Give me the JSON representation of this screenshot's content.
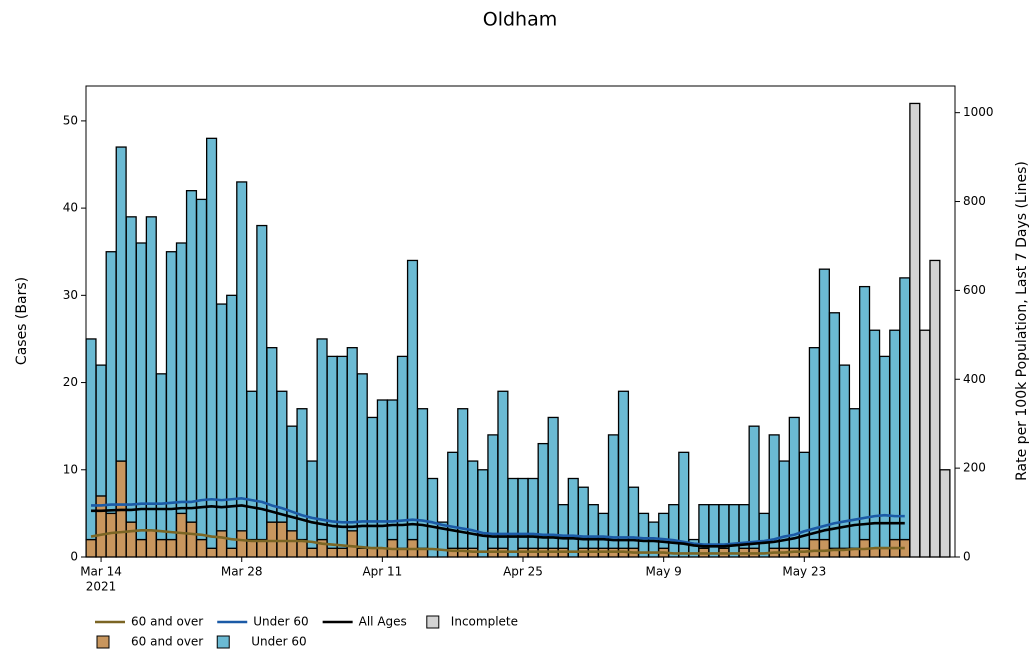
{
  "chart_data": {
    "type": "bar",
    "title": "Oldham",
    "y_label": "Cases (Bars)",
    "y2_label": "Rate per 100k Population, Last 7 Days (Lines)",
    "x": [
      "2021-03-13",
      "2021-03-14",
      "2021-03-15",
      "2021-03-16",
      "2021-03-17",
      "2021-03-18",
      "2021-03-19",
      "2021-03-20",
      "2021-03-21",
      "2021-03-22",
      "2021-03-23",
      "2021-03-24",
      "2021-03-25",
      "2021-03-26",
      "2021-03-27",
      "2021-03-28",
      "2021-03-29",
      "2021-03-30",
      "2021-03-31",
      "2021-04-01",
      "2021-04-02",
      "2021-04-03",
      "2021-04-04",
      "2021-04-05",
      "2021-04-06",
      "2021-04-07",
      "2021-04-08",
      "2021-04-09",
      "2021-04-10",
      "2021-04-11",
      "2021-04-12",
      "2021-04-13",
      "2021-04-14",
      "2021-04-15",
      "2021-04-16",
      "2021-04-17",
      "2021-04-18",
      "2021-04-19",
      "2021-04-20",
      "2021-04-21",
      "2021-04-22",
      "2021-04-23",
      "2021-04-24",
      "2021-04-25",
      "2021-04-26",
      "2021-04-27",
      "2021-04-28",
      "2021-04-29",
      "2021-04-30",
      "2021-05-01",
      "2021-05-02",
      "2021-05-03",
      "2021-05-04",
      "2021-05-05",
      "2021-05-06",
      "2021-05-07",
      "2021-05-08",
      "2021-05-09",
      "2021-05-10",
      "2021-05-11",
      "2021-05-12",
      "2021-05-13",
      "2021-05-14",
      "2021-05-15",
      "2021-05-16",
      "2021-05-17",
      "2021-05-18",
      "2021-05-19",
      "2021-05-20",
      "2021-05-21",
      "2021-05-22",
      "2021-05-23",
      "2021-05-24",
      "2021-05-25",
      "2021-05-26",
      "2021-05-27",
      "2021-05-28",
      "2021-05-29",
      "2021-05-30",
      "2021-05-31",
      "2021-06-01",
      "2021-06-02"
    ],
    "x_year_label": "2021",
    "xlim": [
      "2021-03-12T12:00Z",
      "2021-06-07T00:00Z"
    ],
    "xticks": [
      {
        "value": "2021-03-14",
        "label": "Mar 14"
      },
      {
        "value": "2021-03-28",
        "label": "Mar 28"
      },
      {
        "value": "2021-04-11",
        "label": "Apr 11"
      },
      {
        "value": "2021-04-25",
        "label": "Apr 25"
      },
      {
        "value": "2021-05-09",
        "label": "May 9"
      },
      {
        "value": "2021-05-23",
        "label": "May 23"
      }
    ],
    "ylim": [
      0,
      54
    ],
    "yticks": [
      0,
      10,
      20,
      30,
      40,
      50
    ],
    "y2lim": [
      0,
      1060
    ],
    "y2ticks": [
      0,
      200,
      400,
      600,
      800,
      1000
    ],
    "stacked": true,
    "series": [
      {
        "name": "60 and over",
        "type": "bar",
        "color": "#c8965e",
        "values": [
          2,
          7,
          5,
          11,
          4,
          2,
          3,
          2,
          2,
          5,
          4,
          2,
          1,
          3,
          1,
          3,
          2,
          2,
          4,
          4,
          3,
          2,
          1,
          2,
          1,
          1,
          3,
          1,
          1,
          1,
          2,
          1,
          2,
          1,
          0,
          0,
          1,
          1,
          1,
          0,
          1,
          1,
          0,
          1,
          1,
          1,
          1,
          1,
          0,
          1,
          1,
          1,
          1,
          1,
          1,
          0,
          0,
          1,
          0,
          0,
          0,
          1,
          0,
          1,
          0,
          1,
          1,
          0,
          1,
          1,
          1,
          1,
          2,
          2,
          1,
          1,
          1,
          2,
          1,
          1,
          2,
          2
        ]
      },
      {
        "name": "Under 60",
        "type": "bar",
        "color": "#6bbad3",
        "values": [
          23,
          15,
          30,
          36,
          35,
          34,
          36,
          19,
          33,
          31,
          38,
          39,
          47,
          26,
          29,
          40,
          17,
          36,
          20,
          15,
          12,
          15,
          10,
          23,
          22,
          22,
          21,
          20,
          15,
          17,
          16,
          22,
          32,
          16,
          9,
          4,
          11,
          16,
          10,
          10,
          13,
          18,
          9,
          8,
          8,
          12,
          15,
          5,
          9,
          7,
          5,
          4,
          13,
          18,
          7,
          5,
          4,
          4,
          6,
          12,
          2,
          5,
          6,
          5,
          6,
          5,
          14,
          5,
          13,
          10,
          15,
          11,
          22,
          31,
          27,
          21,
          16,
          29,
          25,
          22,
          24,
          30
        ]
      },
      {
        "name": "60 and over",
        "type": "line",
        "axis": "y2",
        "color": "#7b6524",
        "values": [
          46,
          50,
          54,
          56,
          58,
          60,
          60,
          58,
          56,
          54,
          52,
          50,
          46,
          44,
          40,
          38,
          36,
          36,
          36,
          36,
          36,
          36,
          34,
          30,
          28,
          26,
          24,
          22,
          20,
          20,
          18,
          18,
          18,
          18,
          18,
          16,
          14,
          14,
          12,
          12,
          12,
          12,
          12,
          12,
          12,
          12,
          12,
          12,
          12,
          12,
          12,
          12,
          12,
          12,
          10,
          10,
          10,
          10,
          8,
          8,
          8,
          8,
          8,
          8,
          8,
          8,
          8,
          8,
          10,
          10,
          12,
          12,
          14,
          14,
          16,
          16,
          18,
          18,
          20,
          20,
          20,
          20
        ]
      },
      {
        "name": "Under 60",
        "type": "line",
        "axis": "y2",
        "color": "#1b5aa6",
        "values": [
          116,
          116,
          118,
          118,
          118,
          120,
          120,
          120,
          122,
          124,
          124,
          128,
          130,
          128,
          130,
          132,
          128,
          124,
          116,
          110,
          102,
          94,
          88,
          84,
          80,
          78,
          78,
          80,
          80,
          80,
          80,
          82,
          84,
          82,
          78,
          72,
          68,
          64,
          60,
          54,
          52,
          52,
          52,
          52,
          52,
          50,
          50,
          48,
          48,
          46,
          46,
          46,
          44,
          44,
          44,
          42,
          42,
          40,
          38,
          34,
          30,
          28,
          28,
          28,
          30,
          32,
          34,
          36,
          40,
          46,
          50,
          58,
          64,
          70,
          76,
          80,
          84,
          88,
          92,
          94,
          92,
          92
        ]
      },
      {
        "name": "All Ages",
        "type": "line",
        "axis": "y2",
        "color": "#000000",
        "values": [
          104,
          104,
          105,
          106,
          106,
          108,
          108,
          108,
          108,
          110,
          110,
          112,
          114,
          112,
          114,
          116,
          112,
          108,
          102,
          96,
          90,
          84,
          78,
          74,
          70,
          68,
          68,
          70,
          70,
          70,
          72,
          72,
          74,
          72,
          68,
          64,
          60,
          56,
          52,
          48,
          46,
          46,
          46,
          46,
          46,
          44,
          44,
          42,
          42,
          40,
          40,
          40,
          38,
          38,
          38,
          36,
          36,
          34,
          32,
          30,
          26,
          24,
          24,
          24,
          26,
          28,
          30,
          32,
          34,
          38,
          42,
          48,
          54,
          60,
          64,
          68,
          72,
          74,
          76,
          76,
          76,
          76
        ]
      }
    ],
    "incomplete": {
      "name": "Incomplete",
      "color": "#d3d3d3",
      "x": [
        "2021-06-03",
        "2021-06-04",
        "2021-06-05",
        "2021-06-06"
      ],
      "values": [
        52,
        26,
        34,
        10
      ]
    }
  }
}
